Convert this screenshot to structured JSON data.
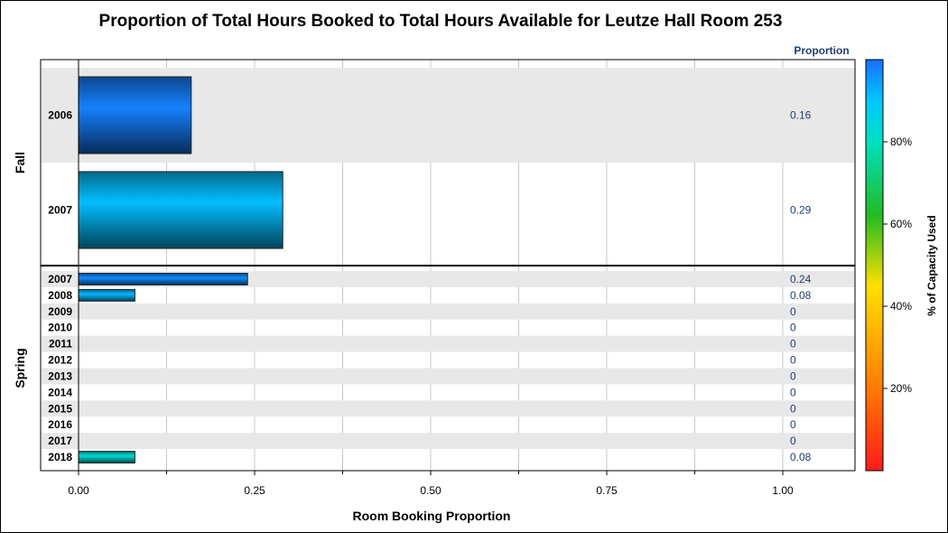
{
  "chart_data": {
    "type": "bar",
    "orientation": "horizontal",
    "title": "Proportion of Total Hours Booked to Total Hours Available for Leutze Hall Room 253",
    "xlabel": "Room Booking Proportion",
    "value_column_header": "Proportion",
    "xlim": [
      0,
      1.1
    ],
    "xticks": [
      "0.00",
      "0.25",
      "0.50",
      "0.75",
      "1.00"
    ],
    "xtick_values": [
      0,
      0.25,
      0.5,
      0.75,
      1.0
    ],
    "grid": true,
    "colorbar": {
      "label": "% of Capacity Used",
      "ticks": [
        "20%",
        "40%",
        "60%",
        "80%"
      ],
      "tick_values": [
        20,
        40,
        60,
        80
      ],
      "range": [
        0,
        100
      ],
      "colors": [
        "#ff1a1a",
        "#ff7a00",
        "#ffe000",
        "#22bb22",
        "#00e0c0",
        "#00c8ff",
        "#1a6fff"
      ]
    },
    "panels": [
      {
        "name": "Fall",
        "categories": [
          "2006",
          "2007"
        ],
        "values": [
          0.16,
          0.29
        ],
        "labels": [
          "0.16",
          "0.29"
        ],
        "capacity_pct": [
          98,
          91
        ]
      },
      {
        "name": "Spring",
        "categories": [
          "2007",
          "2008",
          "2009",
          "2010",
          "2011",
          "2012",
          "2013",
          "2014",
          "2015",
          "2016",
          "2017",
          "2018"
        ],
        "values": [
          0.24,
          0.08,
          0,
          0,
          0,
          0,
          0,
          0,
          0,
          0,
          0,
          0.08
        ],
        "labels": [
          "0.24",
          "0.08",
          "0",
          "0",
          "0",
          "0",
          "0",
          "0",
          "0",
          "0",
          "0",
          "0.08"
        ],
        "capacity_pct": [
          97,
          92,
          0,
          0,
          0,
          0,
          0,
          0,
          0,
          0,
          0,
          83
        ]
      }
    ]
  }
}
